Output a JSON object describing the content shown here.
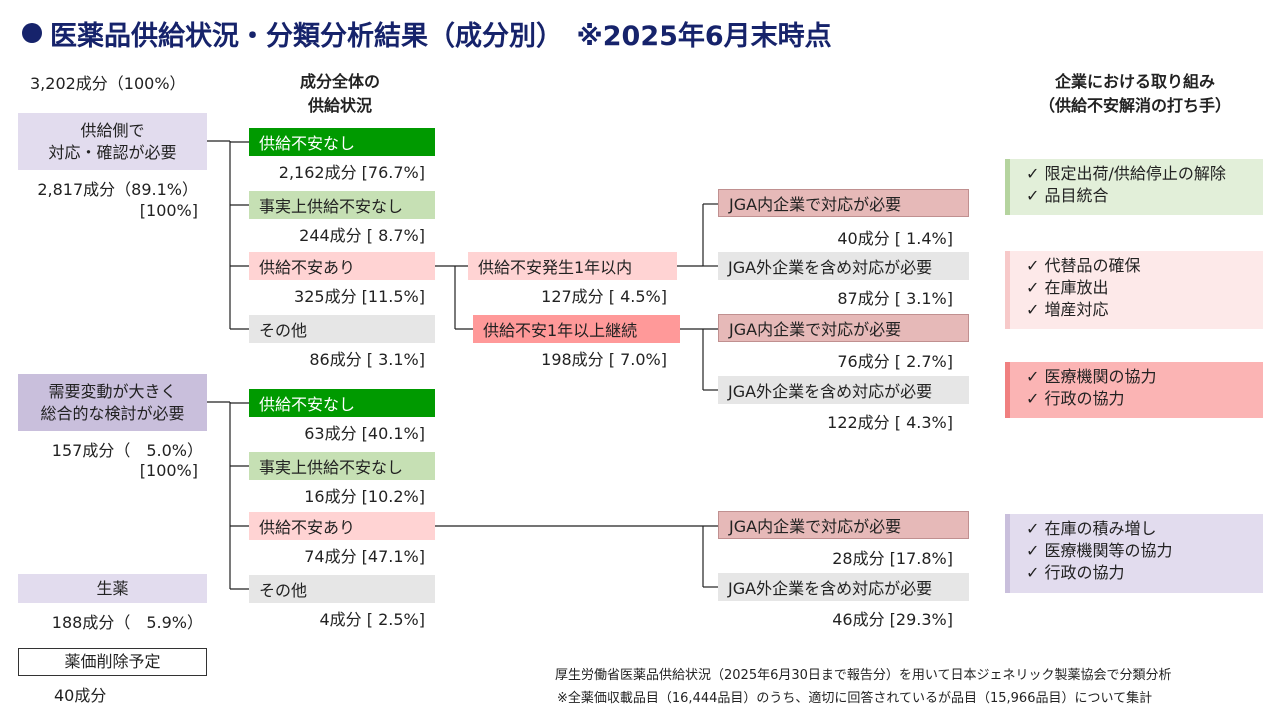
{
  "title": "医薬品供給状況・分類分析結果（成分別）　※2025年6月末時点",
  "total": "3,202成分（100%）",
  "col_header_middle": [
    "成分全体の",
    "供給状況"
  ],
  "col_header_right": [
    "企業における取り組み",
    "（供給不安解消の打ち手）"
  ],
  "group1": {
    "label": [
      "供給側で",
      "対応・確認が必要"
    ],
    "count": "2,817成分（89.1%）",
    "pct": "[100%]"
  },
  "group2": {
    "label": [
      "需要変動が大きく",
      "総合的な検討が必要"
    ],
    "count": "157成分（　5.0%）",
    "pct": "[100%]"
  },
  "group3": {
    "label": "生薬",
    "count": "188成分（　5.9%）"
  },
  "group4": {
    "label": "薬価削除予定",
    "count": "40成分"
  },
  "g1_cats": [
    {
      "label": "供給不安なし",
      "count": "2,162成分 [76.7%]"
    },
    {
      "label": "事実上供給不安なし",
      "count": "244成分 [  8.7%]"
    },
    {
      "label": "供給不安あり",
      "count": "325成分 [11.5%]"
    },
    {
      "label": "その他",
      "count": "86成分 [  3.1%]"
    }
  ],
  "g2_cats": [
    {
      "label": "供給不安なし",
      "count": "63成分 [40.1%]"
    },
    {
      "label": "事実上供給不安なし",
      "count": "16成分 [10.2%]"
    },
    {
      "label": "供給不安あり",
      "count": "74成分 [47.1%]"
    },
    {
      "label": "その他",
      "count": "4成分 [  2.5%]"
    }
  ],
  "mid": [
    {
      "label": "供給不安発生1年以内",
      "count": "127成分 [  4.5%]"
    },
    {
      "label": "供給不安1年以上継続",
      "count": "198成分 [  7.0%]"
    }
  ],
  "jga": [
    {
      "label": "JGA内企業で対応が必要",
      "count": "40成分 [  1.4%]"
    },
    {
      "label": "JGA外企業を含め対応が必要",
      "count": "87成分 [  3.1%]"
    },
    {
      "label": "JGA内企業で対応が必要",
      "count": "76成分 [  2.7%]"
    },
    {
      "label": "JGA外企業を含め対応が必要",
      "count": "122成分 [  4.3%]"
    },
    {
      "label": "JGA内企業で対応が必要",
      "count": "28成分 [17.8%]"
    },
    {
      "label": "JGA外企業を含め対応が必要",
      "count": "46成分 [29.3%]"
    }
  ],
  "actions": [
    [
      "✓ 限定出荷/供給停止の解除",
      "✓ 品目統合"
    ],
    [
      "✓ 代替品の確保",
      "✓ 在庫放出",
      "✓ 増産対応"
    ],
    [
      "✓ 医療機関の協力",
      "✓ 行政の協力"
    ],
    [
      "✓ 在庫の積み増し",
      "✓ 医療機関等の協力",
      "✓ 行政の協力"
    ]
  ],
  "footnotes": [
    "厚生労働省医薬品供給状況（2025年6月30日まで報告分）を用いて日本ジェネリック製薬協会で分類分析",
    "※全薬価収載品目（16,444品目）のうち、適切に回答されているが品目（15,966品目）について集計"
  ]
}
